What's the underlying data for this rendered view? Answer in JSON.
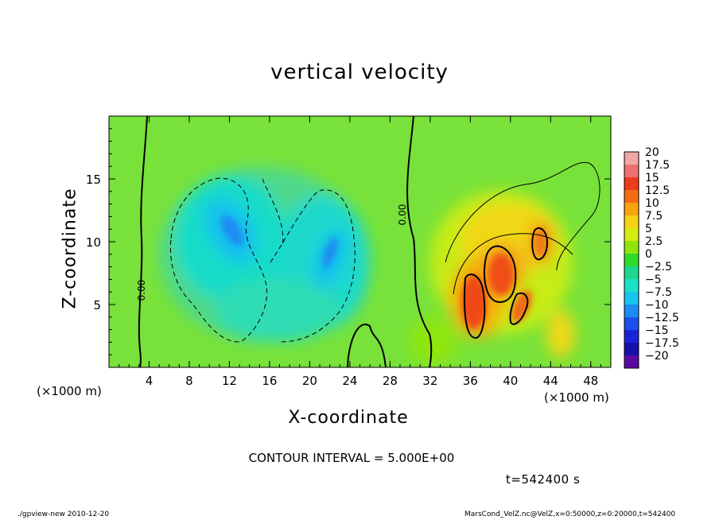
{
  "chart_data": {
    "type": "heatmap",
    "title": "vertical velocity",
    "xlabel": "X-coordinate",
    "ylabel": "Z-coordinate",
    "x_unit": "(×1000 m)",
    "y_unit": "(×1000 m)",
    "xlim": [
      0,
      50
    ],
    "ylim": [
      0,
      20
    ],
    "x_ticks": [
      "4",
      "8",
      "12",
      "16",
      "20",
      "24",
      "28",
      "32",
      "36",
      "40",
      "44",
      "48"
    ],
    "y_ticks": [
      "5",
      "10",
      "15"
    ],
    "colorbar": {
      "labels": [
        "20",
        "17.5",
        "15",
        "12.5",
        "10",
        "7.5",
        "5",
        "2.5",
        "0",
        "−2.5",
        "−5",
        "−7.5",
        "−10",
        "−12.5",
        "−15",
        "−17.5",
        "−20"
      ],
      "colors": [
        "#f4a6a6",
        "#ef6f6f",
        "#ee3a1e",
        "#f46b12",
        "#f7a410",
        "#f3d213",
        "#d4ec10",
        "#8fe60f",
        "#2ddc2a",
        "#1cd78c",
        "#19e0c9",
        "#18c4ee",
        "#1c8cf2",
        "#1c50ee",
        "#1a22d8",
        "#1510a8",
        "#5a0aa0"
      ]
    },
    "contour_label": "0.00",
    "contour_interval_text": "CONTOUR INTERVAL = 5.000E+00",
    "time_text": "t=542400 s"
  },
  "footer": {
    "left": "./gpview-new  2010-12-20",
    "right": "MarsCond_VelZ.nc@VelZ,x=0:50000,z=0:20000,t=542400"
  }
}
